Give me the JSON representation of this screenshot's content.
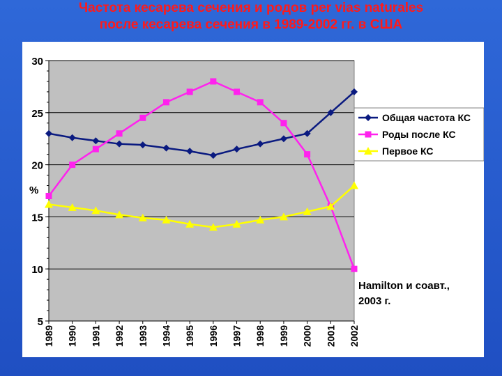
{
  "title": {
    "line1": "Частота кесарева сечения и родов per vias naturales",
    "line2": "после кесарева сечения в 1989-2002 гг. в  США"
  },
  "annotation": {
    "line1": "Hamilton и соавт.,",
    "line2": "2003 г."
  },
  "chart_data": {
    "type": "line",
    "title": "",
    "xlabel": "",
    "ylabel": "%",
    "x": [
      "1989",
      "1990",
      "1991",
      "1992",
      "1993",
      "1994",
      "1995",
      "1996",
      "1997",
      "1998",
      "1999",
      "2000",
      "2001",
      "2002"
    ],
    "ylim": [
      5,
      30
    ],
    "yticks": [
      5,
      10,
      15,
      20,
      25,
      30
    ],
    "grid": "horizontal",
    "legend_position": "right",
    "plot_background": "#c0c0c0",
    "series": [
      {
        "name": "Общая частота КС",
        "color": "#0a1a80",
        "marker": "diamond",
        "values": [
          23.0,
          22.6,
          22.3,
          22.0,
          21.9,
          21.6,
          21.3,
          20.9,
          21.5,
          22.0,
          22.5,
          23.0,
          25.0,
          27.0
        ]
      },
      {
        "name": "Роды после КС",
        "color": "#ff22ee",
        "marker": "square",
        "values": [
          17.0,
          20.0,
          21.5,
          23.0,
          24.5,
          26.0,
          27.0,
          28.0,
          27.0,
          26.0,
          24.0,
          21.0,
          16.0,
          10.0
        ]
      },
      {
        "name": "Первое КС",
        "color": "#ffff00",
        "marker": "triangle",
        "values": [
          16.2,
          15.9,
          15.6,
          15.2,
          14.9,
          14.7,
          14.3,
          14.0,
          14.3,
          14.7,
          15.0,
          15.5,
          16.0,
          18.0
        ]
      }
    ]
  }
}
